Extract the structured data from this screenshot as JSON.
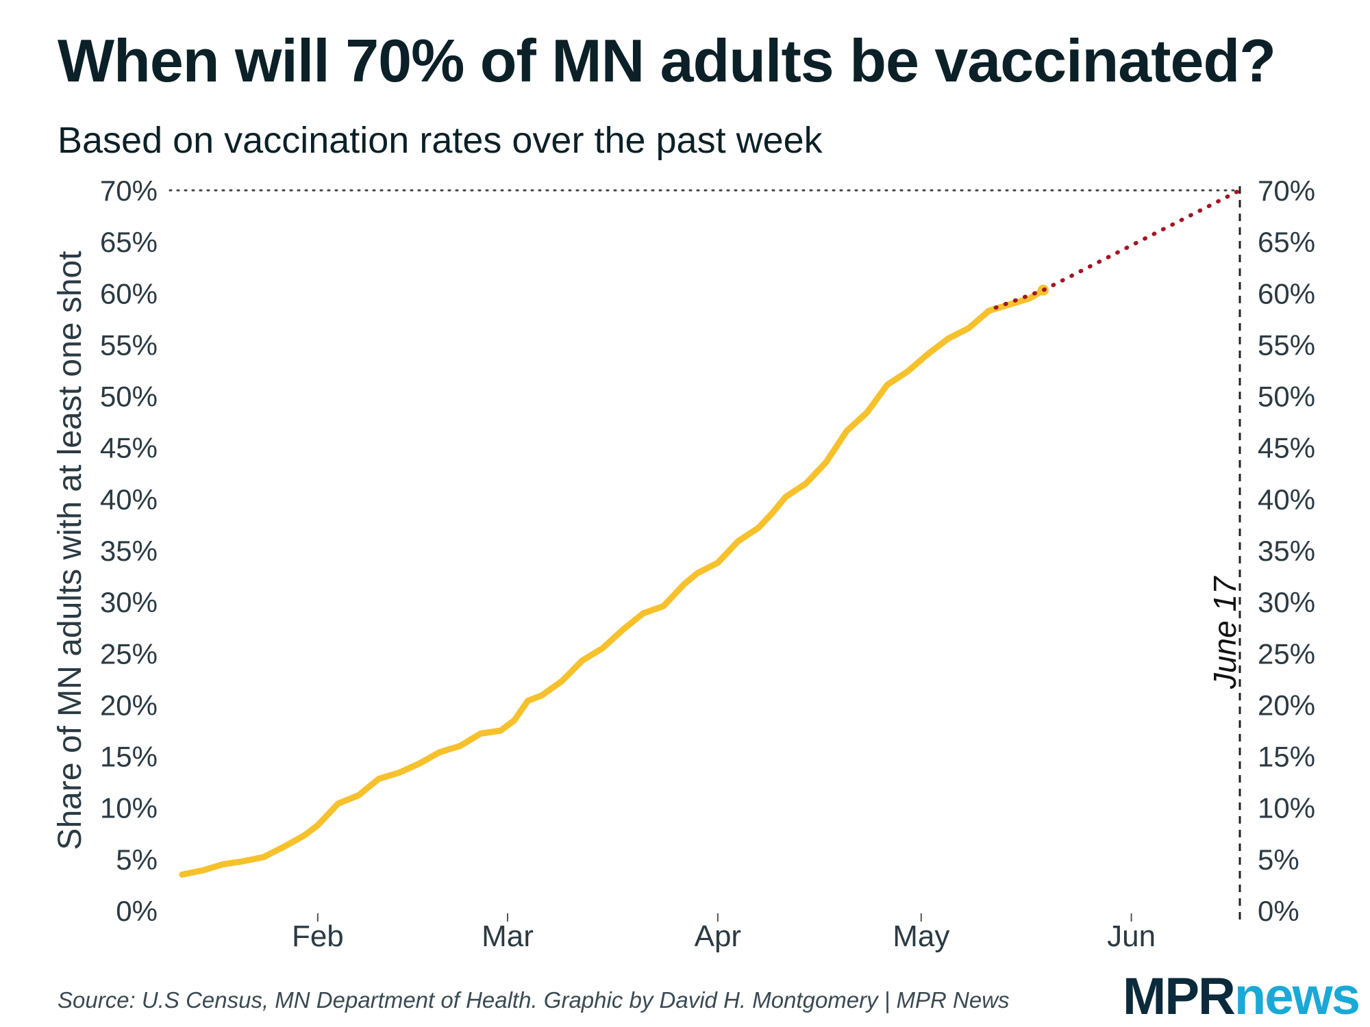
{
  "title": "When will 70% of MN adults be vaccinated?",
  "subtitle": "Based on vaccination rates over the past week",
  "source": "Source: U.S Census, MN Department of Health. Graphic by David H. Montgomery | MPR News",
  "logo": {
    "part1": "MPR",
    "part2": "news"
  },
  "chart_data": {
    "type": "line",
    "ylabel": "Share of MN adults with at least one shot",
    "ylim": [
      0,
      70
    ],
    "yticks": [
      "0%",
      "5%",
      "10%",
      "15%",
      "20%",
      "25%",
      "30%",
      "35%",
      "40%",
      "45%",
      "50%",
      "55%",
      "60%",
      "65%",
      "70%"
    ],
    "xlim": [
      "2021-01-11",
      "2021-06-17"
    ],
    "xticks": [
      {
        "label": "Feb",
        "date": "2021-02-01"
      },
      {
        "label": "Mar",
        "date": "2021-03-01"
      },
      {
        "label": "Apr",
        "date": "2021-04-01"
      },
      {
        "label": "May",
        "date": "2021-05-01"
      },
      {
        "label": "Jun",
        "date": "2021-06-01"
      }
    ],
    "target_value": 70,
    "target_date": "2021-06-17",
    "target_date_label": "June 17",
    "series": [
      {
        "color": "#f6c12b",
        "points": [
          [
            "2021-01-12",
            3.5
          ],
          [
            "2021-01-15",
            3.9
          ],
          [
            "2021-01-18",
            4.5
          ],
          [
            "2021-01-21",
            4.8
          ],
          [
            "2021-01-24",
            5.2
          ],
          [
            "2021-01-27",
            6.2
          ],
          [
            "2021-01-30",
            7.3
          ],
          [
            "2021-02-01",
            8.3
          ],
          [
            "2021-02-04",
            10.4
          ],
          [
            "2021-02-07",
            11.2
          ],
          [
            "2021-02-10",
            12.8
          ],
          [
            "2021-02-13",
            13.4
          ],
          [
            "2021-02-16",
            14.3
          ],
          [
            "2021-02-19",
            15.4
          ],
          [
            "2021-02-22",
            16.0
          ],
          [
            "2021-02-25",
            17.2
          ],
          [
            "2021-02-28",
            17.5
          ],
          [
            "2021-03-02",
            18.5
          ],
          [
            "2021-03-04",
            20.4
          ],
          [
            "2021-03-06",
            20.9
          ],
          [
            "2021-03-09",
            22.3
          ],
          [
            "2021-03-12",
            24.3
          ],
          [
            "2021-03-15",
            25.5
          ],
          [
            "2021-03-18",
            27.3
          ],
          [
            "2021-03-21",
            28.9
          ],
          [
            "2021-03-24",
            29.6
          ],
          [
            "2021-03-27",
            31.7
          ],
          [
            "2021-03-29",
            32.8
          ],
          [
            "2021-04-01",
            33.8
          ],
          [
            "2021-04-04",
            35.9
          ],
          [
            "2021-04-07",
            37.2
          ],
          [
            "2021-04-09",
            38.6
          ],
          [
            "2021-04-11",
            40.2
          ],
          [
            "2021-04-14",
            41.5
          ],
          [
            "2021-04-17",
            43.6
          ],
          [
            "2021-04-20",
            46.6
          ],
          [
            "2021-04-23",
            48.4
          ],
          [
            "2021-04-26",
            51.1
          ],
          [
            "2021-04-29",
            52.4
          ],
          [
            "2021-05-02",
            54.1
          ],
          [
            "2021-05-05",
            55.6
          ],
          [
            "2021-05-08",
            56.6
          ],
          [
            "2021-05-11",
            58.3
          ],
          [
            "2021-05-14",
            58.9
          ],
          [
            "2021-05-17",
            59.5
          ],
          [
            "2021-05-19",
            60.3
          ]
        ]
      }
    ],
    "projection": {
      "color": "#a31621",
      "style": "dotted",
      "points": [
        [
          "2021-05-12",
          58.6
        ],
        [
          "2021-05-19",
          60.3
        ],
        [
          "2021-06-17",
          70
        ]
      ]
    }
  }
}
